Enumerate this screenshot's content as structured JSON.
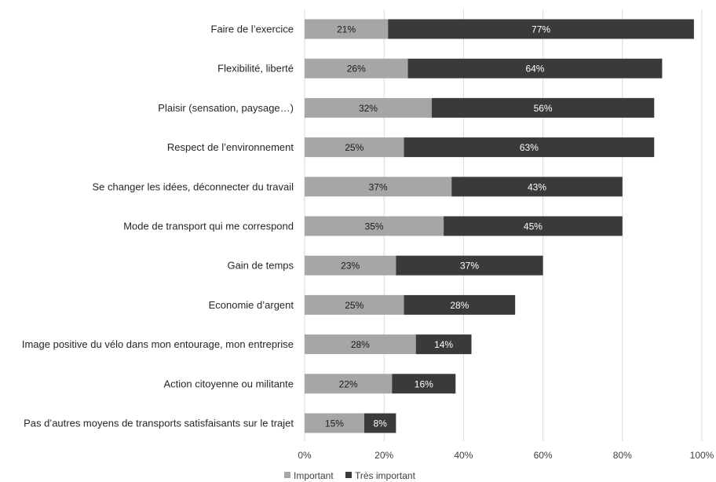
{
  "colors": {
    "important": "#a6a6a8",
    "tres_important": "#3a3a3a",
    "label_on_light": "#1a1a1a",
    "label_on_dark": "#ffffff",
    "grid": "#d9d9d9"
  },
  "chart_data": {
    "type": "bar",
    "orientation": "horizontal",
    "stacked": true,
    "title": "",
    "xlabel": "",
    "ylabel": "",
    "xlim": [
      0,
      100
    ],
    "grid": true,
    "legend_position": "bottom",
    "x_ticks": [
      "0%",
      "20%",
      "40%",
      "60%",
      "80%",
      "100%"
    ],
    "categories": [
      "Faire de l’exercice",
      "Flexibilité, liberté",
      "Plaisir (sensation, paysage…)",
      "Respect de l’environnement",
      "Se changer les idées, déconnecter du travail",
      "Mode de transport qui me correspond",
      "Gain de temps",
      "Economie d’argent",
      "Image positive du vélo dans mon entourage, mon entreprise",
      "Action citoyenne ou militante",
      "Pas d’autres moyens de transports satisfaisants sur le trajet"
    ],
    "series": [
      {
        "name": "Important",
        "values": [
          21,
          26,
          32,
          25,
          37,
          35,
          23,
          25,
          28,
          22,
          15
        ],
        "labels": [
          "21%",
          "26%",
          "32%",
          "25%",
          "37%",
          "35%",
          "23%",
          "25%",
          "28%",
          "22%",
          "15%"
        ]
      },
      {
        "name": "Très important",
        "values": [
          77,
          64,
          56,
          63,
          43,
          45,
          37,
          28,
          14,
          16,
          8
        ],
        "labels": [
          "77%",
          "64%",
          "56%",
          "63%",
          "43%",
          "45%",
          "37%",
          "28%",
          "14%",
          "16%",
          "8%"
        ]
      }
    ]
  }
}
